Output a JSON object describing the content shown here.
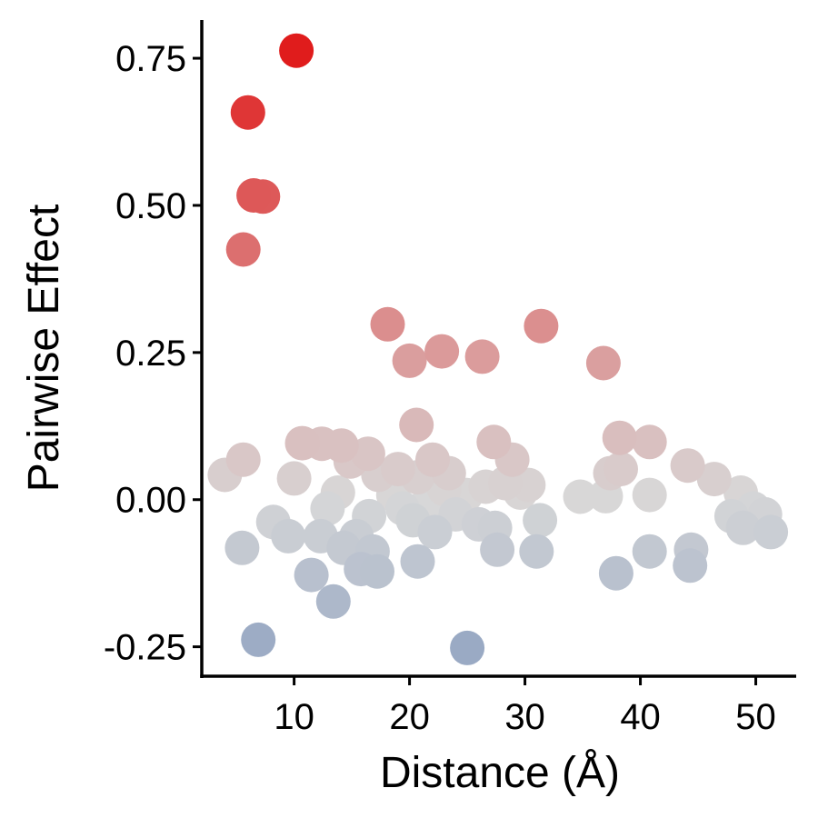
{
  "chart_data": {
    "type": "scatter",
    "title": "",
    "xlabel": "Distance (Å)",
    "ylabel": "Pairwise Effect",
    "xlim": [
      2,
      53.5
    ],
    "ylim": [
      -0.3,
      0.815
    ],
    "xticks": [
      10,
      20,
      30,
      40,
      50
    ],
    "xtick_labels": [
      "10",
      "20",
      "30",
      "40",
      "50"
    ],
    "yticks": [
      -0.25,
      0,
      0.25,
      0.5,
      0.75
    ],
    "ytick_labels": [
      "-0.25",
      "0.00",
      "0.25",
      "0.50",
      "0.75"
    ],
    "grid": false,
    "legend": "none",
    "color_scale": {
      "low_value": -0.25,
      "low_color": "#9aaac4",
      "mid_value": 0.0,
      "mid_color": "#d8d8d8",
      "high_value": 0.77,
      "high_color": "#e01a1a"
    },
    "points": [
      {
        "x": 4.0,
        "y": 0.042
      },
      {
        "x": 5.6,
        "y": 0.068
      },
      {
        "x": 5.5,
        "y": -0.082
      },
      {
        "x": 5.6,
        "y": 0.425
      },
      {
        "x": 6.0,
        "y": 0.658
      },
      {
        "x": 6.5,
        "y": 0.517
      },
      {
        "x": 7.3,
        "y": 0.515
      },
      {
        "x": 6.9,
        "y": -0.238
      },
      {
        "x": 8.2,
        "y": -0.038
      },
      {
        "x": 9.5,
        "y": -0.062
      },
      {
        "x": 10.0,
        "y": 0.036
      },
      {
        "x": 10.2,
        "y": 0.763
      },
      {
        "x": 10.7,
        "y": 0.096
      },
      {
        "x": 11.5,
        "y": -0.128
      },
      {
        "x": 12.3,
        "y": -0.062
      },
      {
        "x": 12.4,
        "y": 0.095
      },
      {
        "x": 12.9,
        "y": -0.015
      },
      {
        "x": 13.4,
        "y": -0.173
      },
      {
        "x": 13.8,
        "y": 0.012
      },
      {
        "x": 14.1,
        "y": 0.092
      },
      {
        "x": 14.3,
        "y": -0.082
      },
      {
        "x": 14.9,
        "y": 0.065
      },
      {
        "x": 15.4,
        "y": -0.062
      },
      {
        "x": 15.8,
        "y": -0.118
      },
      {
        "x": 16.4,
        "y": 0.078
      },
      {
        "x": 16.5,
        "y": -0.028
      },
      {
        "x": 16.8,
        "y": -0.088
      },
      {
        "x": 17.2,
        "y": -0.122
      },
      {
        "x": 17.3,
        "y": 0.042
      },
      {
        "x": 18.1,
        "y": 0.298
      },
      {
        "x": 18.6,
        "y": 0.008
      },
      {
        "x": 19.0,
        "y": 0.052
      },
      {
        "x": 19.4,
        "y": -0.015
      },
      {
        "x": 20.0,
        "y": 0.236
      },
      {
        "x": 20.3,
        "y": -0.035
      },
      {
        "x": 20.6,
        "y": 0.127
      },
      {
        "x": 20.7,
        "y": 0.038
      },
      {
        "x": 20.7,
        "y": -0.105
      },
      {
        "x": 21.6,
        "y": -0.005
      },
      {
        "x": 22.0,
        "y": 0.068
      },
      {
        "x": 22.2,
        "y": -0.055
      },
      {
        "x": 22.8,
        "y": 0.252
      },
      {
        "x": 23.0,
        "y": 0.018
      },
      {
        "x": 23.4,
        "y": 0.045
      },
      {
        "x": 24.0,
        "y": -0.025
      },
      {
        "x": 24.9,
        "y": 0.008
      },
      {
        "x": 25.0,
        "y": -0.252
      },
      {
        "x": 26.0,
        "y": -0.042
      },
      {
        "x": 26.3,
        "y": 0.243
      },
      {
        "x": 26.6,
        "y": 0.022
      },
      {
        "x": 27.3,
        "y": 0.098
      },
      {
        "x": 27.4,
        "y": -0.048
      },
      {
        "x": 27.6,
        "y": -0.085
      },
      {
        "x": 28.3,
        "y": 0.028
      },
      {
        "x": 28.9,
        "y": 0.068
      },
      {
        "x": 29.6,
        "y": 0.012
      },
      {
        "x": 30.3,
        "y": 0.025
      },
      {
        "x": 31.0,
        "y": -0.088
      },
      {
        "x": 31.3,
        "y": -0.035
      },
      {
        "x": 31.4,
        "y": 0.295
      },
      {
        "x": 34.8,
        "y": 0.005
      },
      {
        "x": 36.8,
        "y": 0.232
      },
      {
        "x": 37.0,
        "y": 0.006
      },
      {
        "x": 37.4,
        "y": 0.045
      },
      {
        "x": 37.9,
        "y": -0.125
      },
      {
        "x": 38.2,
        "y": 0.105
      },
      {
        "x": 38.3,
        "y": 0.052
      },
      {
        "x": 40.8,
        "y": 0.098
      },
      {
        "x": 40.8,
        "y": 0.008
      },
      {
        "x": 40.8,
        "y": -0.088
      },
      {
        "x": 44.1,
        "y": 0.058
      },
      {
        "x": 44.3,
        "y": -0.112
      },
      {
        "x": 44.4,
        "y": -0.085
      },
      {
        "x": 46.4,
        "y": 0.035
      },
      {
        "x": 47.9,
        "y": -0.028
      },
      {
        "x": 48.7,
        "y": 0.012
      },
      {
        "x": 48.9,
        "y": -0.048
      },
      {
        "x": 49.8,
        "y": -0.015
      },
      {
        "x": 50.8,
        "y": -0.025
      },
      {
        "x": 51.3,
        "y": -0.055
      }
    ]
  }
}
